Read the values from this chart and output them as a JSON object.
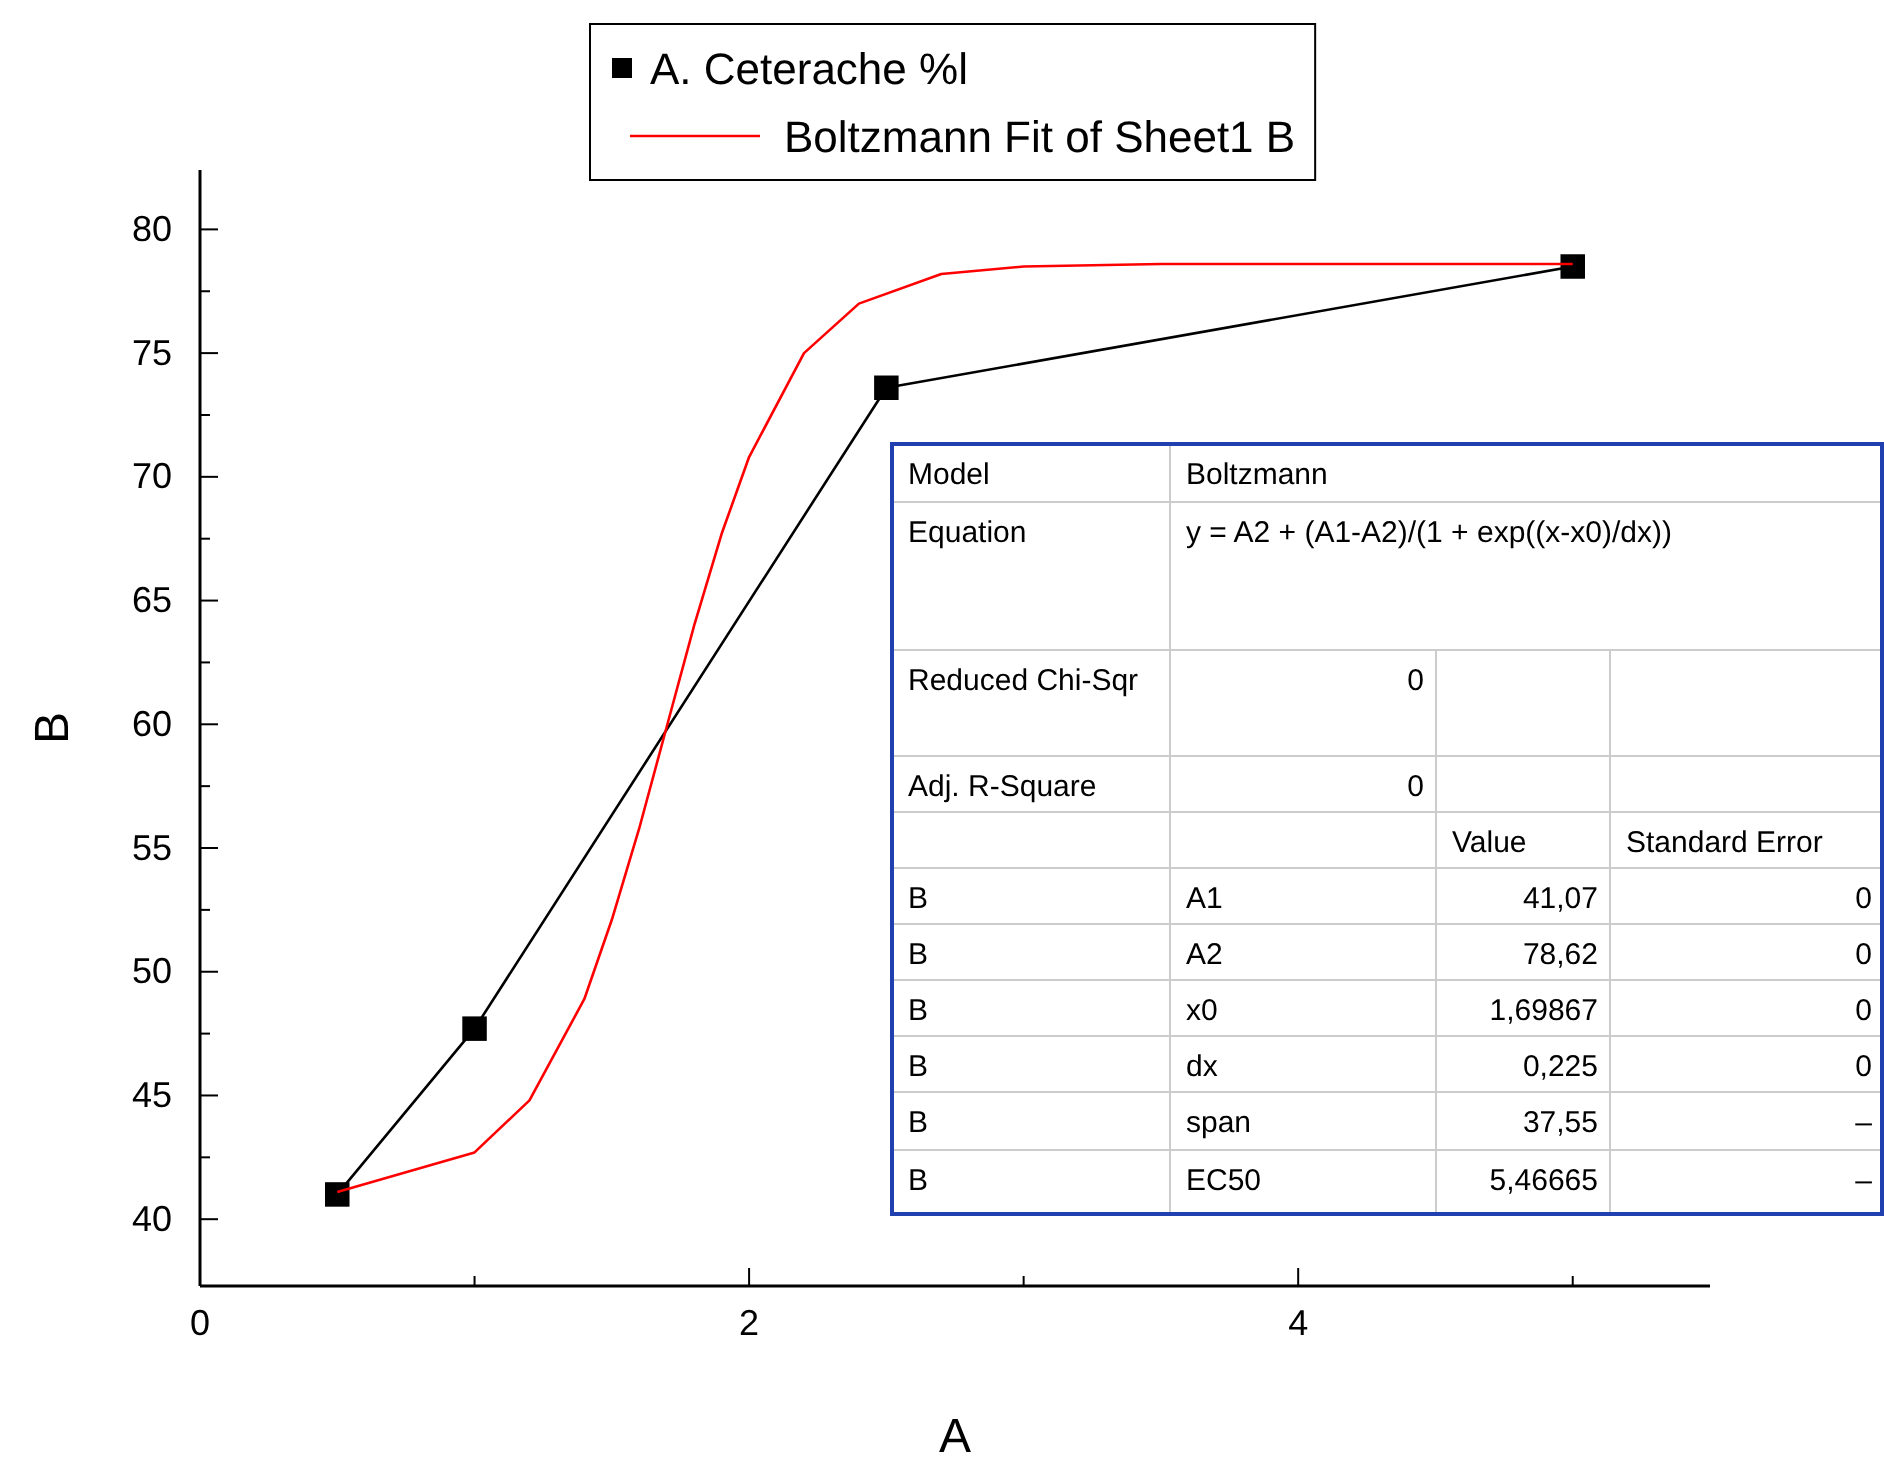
{
  "chart_data": {
    "type": "line",
    "xlabel": "A",
    "ylabel": "B",
    "xlim": [
      0,
      5.5
    ],
    "ylim": [
      37.3,
      82.4
    ],
    "xticks": [
      0,
      {
        "value": 1,
        "label": null
      },
      2,
      {
        "value": 3,
        "label": null
      },
      4,
      {
        "value": 5,
        "label": null
      }
    ],
    "yticks": [
      40,
      {
        "value": 42.5,
        "label": null
      },
      45,
      {
        "value": 47.5,
        "label": null
      },
      50,
      {
        "value": 52.5,
        "label": null
      },
      55,
      {
        "value": 57.5,
        "label": null
      },
      60,
      {
        "value": 62.5,
        "label": null
      },
      65,
      {
        "value": 67.5,
        "label": null
      },
      70,
      {
        "value": 72.5,
        "label": null
      },
      75,
      {
        "value": 77.5,
        "label": null
      },
      80
    ],
    "legend": "top",
    "grid": false,
    "series": [
      {
        "name": "A. Ceterache %l",
        "color": "#000000",
        "marker": "square",
        "x": [
          0.5,
          1,
          2.5,
          5
        ],
        "values": [
          41,
          47.7,
          73.6,
          78.5
        ]
      },
      {
        "name": "Boltzmann Fit of Sheet1 B",
        "color": "#ff0000",
        "marker": "none",
        "x": [
          0.5,
          1,
          1.2,
          1.4,
          1.5,
          1.6,
          1.7,
          1.8,
          1.9,
          2,
          2.2,
          2.4,
          2.7,
          3,
          3.5,
          5
        ],
        "values": [
          41.1,
          42.7,
          44.8,
          48.9,
          52.1,
          55.8,
          59.9,
          64,
          67.7,
          70.8,
          75,
          77,
          78.2,
          78.5,
          78.6,
          78.6
        ]
      }
    ],
    "annotations": [
      "Model",
      "Boltzmann",
      "Equation",
      "y = A2 + (A1-A2)/(1 + exp((x-x0)/dx))",
      "Reduced Chi-Sqr",
      "0",
      "Adj. R-Square",
      "0",
      "Value",
      "Standard Error",
      "B",
      "A1",
      "41,07",
      "0",
      "B",
      "A2",
      "78,62",
      "0",
      "B",
      "x0",
      "1,69867",
      "0",
      "B",
      "dx",
      "0,225",
      "0",
      "B",
      "span",
      "37,55",
      "–",
      "B",
      "EC50",
      "5,46665",
      "–"
    ]
  }
}
